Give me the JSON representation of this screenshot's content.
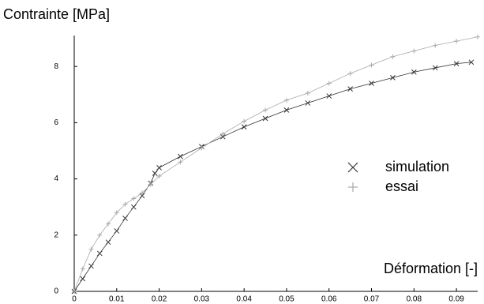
{
  "chart_data": {
    "type": "line",
    "y_label": "Contrainte  [MPa]",
    "x_label": "Déformation  [-]",
    "xlim": [
      0,
      0.095
    ],
    "ylim": [
      0,
      9.1
    ],
    "xticks": [
      0,
      0.01,
      0.02,
      0.03,
      0.04,
      0.05,
      0.06,
      0.07,
      0.08,
      0.09
    ],
    "yticks": [
      0,
      2,
      4,
      6,
      8
    ],
    "grid": false,
    "legend": "right",
    "series": [
      {
        "name": "simulation",
        "color": "#333333",
        "marker": "x",
        "x": [
          0,
          0.002,
          0.004,
          0.006,
          0.008,
          0.01,
          0.012,
          0.014,
          0.016,
          0.018,
          0.019,
          0.02,
          0.025,
          0.03,
          0.035,
          0.04,
          0.045,
          0.05,
          0.055,
          0.06,
          0.065,
          0.07,
          0.075,
          0.08,
          0.085,
          0.09,
          0.0935
        ],
        "values": [
          0,
          0.45,
          0.9,
          1.35,
          1.75,
          2.15,
          2.6,
          3.0,
          3.4,
          3.85,
          4.2,
          4.4,
          4.8,
          5.15,
          5.5,
          5.85,
          6.15,
          6.45,
          6.7,
          6.95,
          7.2,
          7.4,
          7.6,
          7.8,
          7.95,
          8.1,
          8.15
        ]
      },
      {
        "name": "essai",
        "color": "#aaaaaa",
        "marker": "+",
        "x": [
          0,
          0.002,
          0.004,
          0.006,
          0.008,
          0.01,
          0.012,
          0.014,
          0.016,
          0.018,
          0.02,
          0.025,
          0.03,
          0.035,
          0.04,
          0.045,
          0.05,
          0.055,
          0.06,
          0.065,
          0.07,
          0.075,
          0.08,
          0.085,
          0.09,
          0.095
        ],
        "values": [
          0,
          0.8,
          1.5,
          2.0,
          2.4,
          2.8,
          3.1,
          3.3,
          3.5,
          3.8,
          4.1,
          4.6,
          5.1,
          5.6,
          6.05,
          6.45,
          6.8,
          7.05,
          7.4,
          7.75,
          8.05,
          8.35,
          8.55,
          8.75,
          8.9,
          9.05
        ]
      }
    ]
  }
}
